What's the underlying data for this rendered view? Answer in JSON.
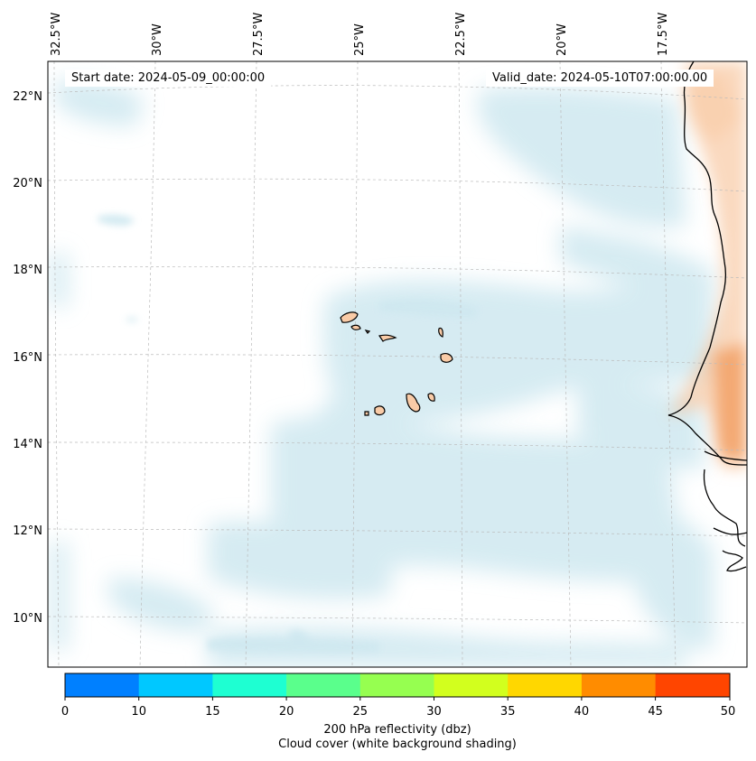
{
  "map": {
    "start_date": "Start date: 2024-05-09_00:00:00",
    "valid_date": "Valid_date: 2024-05-10T07:00:00.00",
    "longitude_labels": [
      "32.5°W",
      "30°W",
      "27.5°W",
      "25°W",
      "22.5°W",
      "20°W",
      "17.5°W"
    ],
    "latitude_labels": [
      "22°N",
      "20°N",
      "18°N",
      "16°N",
      "14°N",
      "12°N",
      "10°N"
    ],
    "colors": {
      "cloud_shading": "#cfe8f0",
      "land_dust": "#f6b98a",
      "island_fill": "#f9cba7",
      "coastline": "#000000",
      "gridline": "#bbbbbb"
    }
  },
  "colorbar": {
    "ticks": [
      "0",
      "10",
      "15",
      "20",
      "25",
      "30",
      "35",
      "40",
      "45",
      "50"
    ],
    "colors": [
      "#0080ff",
      "#00c8ff",
      "#1effd2",
      "#5aff8c",
      "#96ff50",
      "#d2ff1e",
      "#ffd700",
      "#ff8c00",
      "#ff4500"
    ],
    "label_line1": "200 hPa reflectivity (dbz)",
    "label_line2": "Cloud cover (white background shading)"
  }
}
